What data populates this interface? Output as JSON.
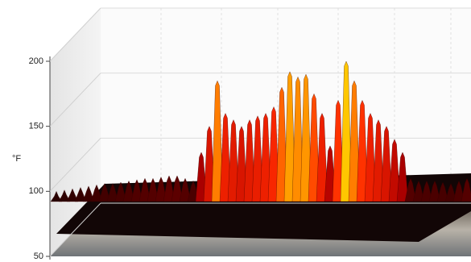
{
  "chart_data": {
    "type": "surface3d",
    "y_label": "°F",
    "ylim": [
      50,
      200
    ],
    "yticks": [
      50,
      100,
      150,
      200
    ],
    "grid": true,
    "colorscale": [
      "#140000",
      "#b00000",
      "#ff2a00",
      "#ffe000"
    ],
    "values": [
      100,
      101,
      102,
      103,
      104,
      105,
      106,
      106,
      107,
      108,
      109,
      110,
      110,
      111,
      112,
      112,
      110,
      108,
      130,
      150,
      185,
      160,
      155,
      150,
      155,
      158,
      160,
      165,
      180,
      192,
      188,
      190,
      175,
      160,
      135,
      170,
      200,
      185,
      170,
      160,
      155,
      150,
      140,
      130,
      110,
      108,
      108,
      108,
      107,
      106,
      108,
      110
    ]
  }
}
